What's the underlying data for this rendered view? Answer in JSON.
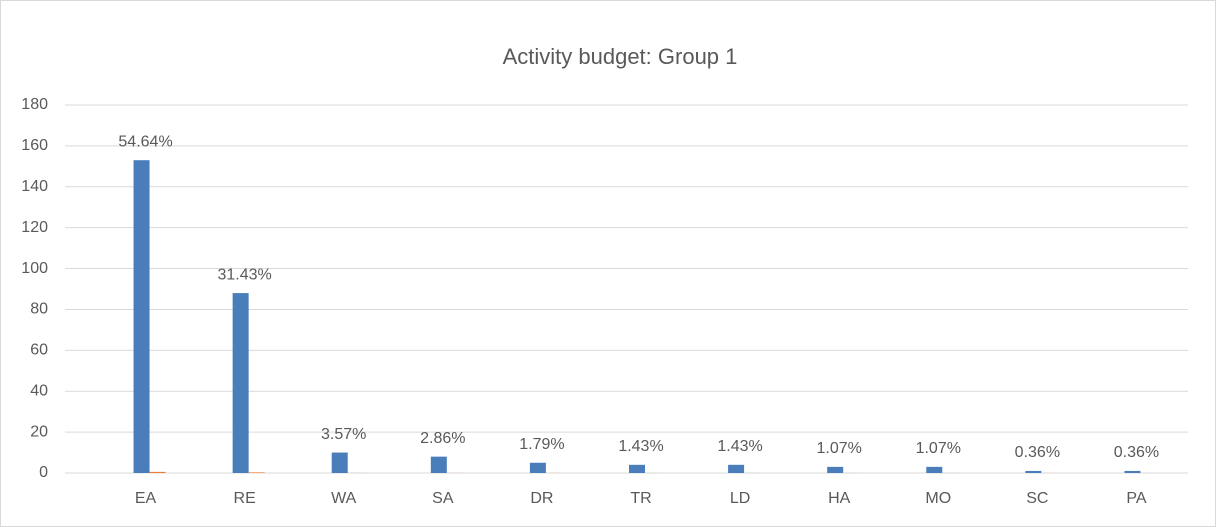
{
  "chart_data": {
    "type": "bar",
    "title": "Activity budget: Group 1",
    "categories": [
      "EA",
      "RE",
      "WA",
      "SA",
      "DR",
      "TR",
      "LD",
      "HA",
      "MO",
      "SC",
      "PA"
    ],
    "series": [
      {
        "color": "#4a7ebb",
        "values": [
          153,
          88,
          10,
          8,
          5,
          4,
          4,
          3,
          3,
          1,
          1
        ]
      },
      {
        "color": "#ed7d31",
        "values": [
          0.5464,
          0.3143,
          0.0357,
          0.0286,
          0.0179,
          0.0143,
          0.0143,
          0.0107,
          0.0107,
          0.0036,
          0.0036
        ],
        "value_labels": [
          "54.64%",
          "31.43%",
          "3.57%",
          "2.86%",
          "1.79%",
          "1.43%",
          "1.43%",
          "1.07%",
          "1.07%",
          "0.36%",
          "0.36%"
        ]
      }
    ],
    "ylim": [
      0,
      180
    ],
    "yticks": [
      0,
      20,
      40,
      60,
      80,
      100,
      120,
      140,
      160,
      180
    ],
    "grid": true
  }
}
